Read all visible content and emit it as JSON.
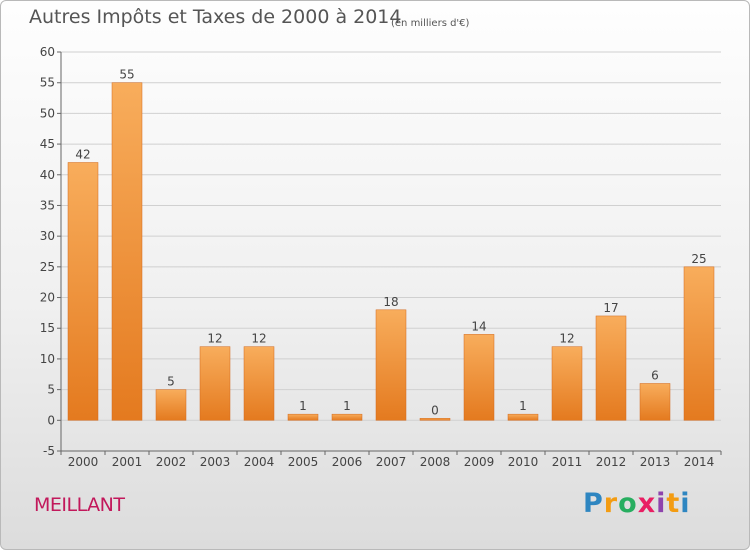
{
  "title": "Autres Impôts et Taxes de 2000 à 2014",
  "subtitle": "(en milliers d'€)",
  "commune": "MEILLANT",
  "logo": {
    "letters": [
      "P",
      "r",
      "o",
      "x",
      "i",
      "t",
      "i"
    ],
    "colors": [
      "#2e86c1",
      "#f39c12",
      "#27ae60",
      "#e91e63",
      "#8e44ad",
      "#f39c12",
      "#2e86c1"
    ]
  },
  "colors": {
    "bar_light": "#f8ad5c",
    "bar_dark": "#e47a1f",
    "grid": "#d0d0d0"
  },
  "chart_data": {
    "type": "bar",
    "categories": [
      "2000",
      "2001",
      "2002",
      "2003",
      "2004",
      "2005",
      "2006",
      "2007",
      "2008",
      "2009",
      "2010",
      "2011",
      "2012",
      "2013",
      "2014"
    ],
    "values": [
      42,
      55,
      5,
      12,
      12,
      1,
      1,
      18,
      0,
      14,
      1,
      12,
      17,
      6,
      25
    ],
    "data_labels": [
      "42",
      "55",
      "5",
      "12",
      "12",
      "1",
      "1",
      "18",
      "0",
      "14",
      "1",
      "12",
      "17",
      "6",
      "25"
    ],
    "ylim": [
      -5,
      60
    ],
    "yticks": [
      -5,
      0,
      5,
      10,
      15,
      20,
      25,
      30,
      35,
      40,
      45,
      50,
      55,
      60
    ],
    "title": "Autres Impôts et Taxes de 2000 à 2014",
    "xlabel": "",
    "ylabel": "",
    "grid": true
  }
}
